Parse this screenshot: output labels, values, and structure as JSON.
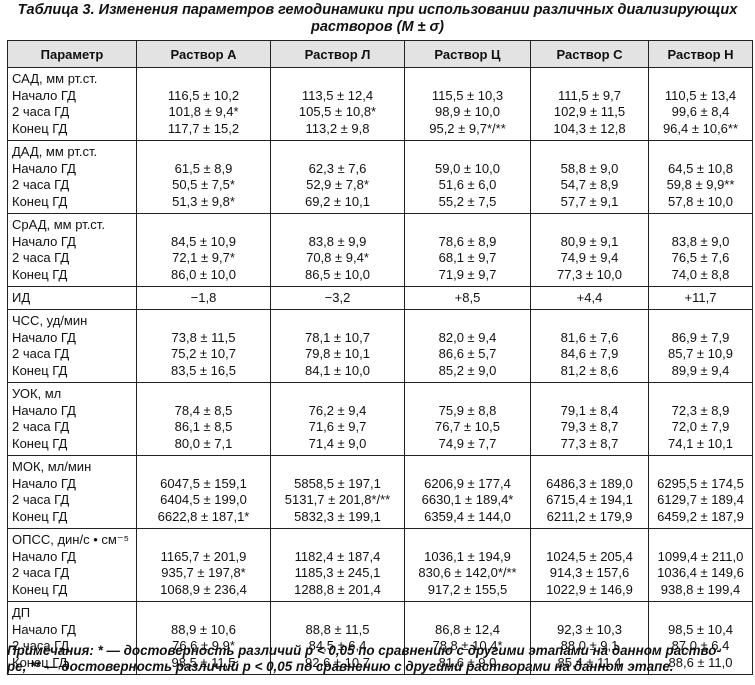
{
  "title_line1": "Таблица 3. Изменения параметров гемодинамики при использовании различных диализирующих",
  "title_line2": "растворов (M ± σ)",
  "headers": [
    "Параметр",
    "Раствор А",
    "Раствор Л",
    "Раствор Ц",
    "Раствор С",
    "Раствор Н"
  ],
  "groups": [
    {
      "params": [
        "САД, мм рт.ст.",
        "Начало ГД",
        "2 часа ГД",
        "Конец ГД"
      ],
      "values": [
        [
          "",
          "116,5 ± 10,2",
          "101,8 ± 9,4*",
          "117,7 ± 15,2"
        ],
        [
          "",
          "113,5 ± 12,4",
          "105,5 ± 10,8*",
          "113,2 ± 9,8"
        ],
        [
          "",
          "115,5 ± 10,3",
          "98,9 ± 10,0",
          "95,2 ± 9,7*/**"
        ],
        [
          "",
          "111,5 ± 9,7",
          "102,9 ± 11,5",
          "104,3 ± 12,8"
        ],
        [
          "",
          "110,5 ± 13,4",
          "99,6 ± 8,4",
          "96,4 ± 10,6**"
        ]
      ]
    },
    {
      "params": [
        "ДАД, мм рт.ст.",
        "Начало ГД",
        "2 часа ГД",
        "Конец ГД"
      ],
      "values": [
        [
          "",
          "61,5 ± 8,9",
          "50,5 ± 7,5*",
          "51,3 ± 9,8*"
        ],
        [
          "",
          "62,3 ± 7,6",
          "52,9 ± 7,8*",
          "69,2 ± 10,1"
        ],
        [
          "",
          "59,0 ± 10,0",
          "51,6 ± 6,0",
          "55,2 ± 7,5"
        ],
        [
          "",
          "58,8 ± 9,0",
          "54,7 ± 8,9",
          "57,7 ± 9,1"
        ],
        [
          "",
          "64,5 ± 10,8",
          "59,8 ± 9,9**",
          "57,8 ± 10,0"
        ]
      ]
    },
    {
      "params": [
        "СрАД, мм рт.ст.",
        "Начало ГД",
        "2 часа ГД",
        "Конец ГД"
      ],
      "values": [
        [
          "",
          "84,5 ± 10,9",
          "72,1 ± 9,7*",
          "86,0 ± 10,0"
        ],
        [
          "",
          "83,8 ± 9,9",
          "70,8 ± 9,4*",
          "86,5 ± 10,0"
        ],
        [
          "",
          "78,6 ± 8,9",
          "68,1 ± 9,7",
          "71,9 ± 9,7"
        ],
        [
          "",
          "80,9 ± 9,1",
          "74,9 ± 9,4",
          "77,3 ± 10,0"
        ],
        [
          "",
          "83,8 ± 9,0",
          "76,5 ± 7,6",
          "74,0 ± 8,8"
        ]
      ]
    },
    {
      "params": [
        "ИД"
      ],
      "values": [
        [
          "−1,8"
        ],
        [
          "−3,2"
        ],
        [
          "+8,5"
        ],
        [
          "+4,4"
        ],
        [
          "+11,7"
        ]
      ]
    },
    {
      "params": [
        "ЧСС, уд/мин",
        "Начало ГД",
        "2 часа ГД",
        "Конец ГД"
      ],
      "values": [
        [
          "",
          "73,8 ± 11,5",
          "75,2 ± 10,7",
          "83,5 ± 16,5"
        ],
        [
          "",
          "78,1 ± 10,7",
          "79,8 ± 10,1",
          "84,1 ± 10,0"
        ],
        [
          "",
          "82,0 ± 9,4",
          "86,6 ± 5,7",
          "85,2 ± 9,0"
        ],
        [
          "",
          "81,6 ± 7,6",
          "84,6 ± 7,9",
          "81,2 ± 8,6"
        ],
        [
          "",
          "86,9 ± 7,9",
          "85,7 ± 10,9",
          "89,9 ± 9,4"
        ]
      ]
    },
    {
      "params": [
        "УОК, мл",
        "Начало ГД",
        "2 часа ГД",
        "Конец ГД"
      ],
      "values": [
        [
          "",
          "78,4 ± 8,5",
          "86,1 ± 8,5",
          "80,0 ± 7,1"
        ],
        [
          "",
          "76,2 ± 9,4",
          "71,6 ± 9,7",
          "71,4 ± 9,0"
        ],
        [
          "",
          "75,9 ± 8,8",
          "76,7 ± 10,5",
          "74,9 ± 7,7"
        ],
        [
          "",
          "79,1 ± 8,4",
          "79,3 ± 8,7",
          "77,3 ± 8,7"
        ],
        [
          "",
          "72,3 ± 8,9",
          "72,0 ± 7,9",
          "74,1 ± 10,1"
        ]
      ]
    },
    {
      "params": [
        "МОК, мл/мин",
        "Начало ГД",
        "2 часа ГД",
        "Конец ГД"
      ],
      "values": [
        [
          "",
          "6047,5 ± 159,1",
          "6404,5 ± 199,0",
          "6622,8 ± 187,1*"
        ],
        [
          "",
          "5858,5 ± 197,1",
          "5131,7 ± 201,8*/**",
          "5832,3 ± 199,1"
        ],
        [
          "",
          "6206,9 ± 177,4",
          "6630,1 ± 189,4*",
          "6359,4 ± 144,0"
        ],
        [
          "",
          "6486,3 ± 189,0",
          "6715,4 ± 194,1",
          "6211,2 ± 179,9"
        ],
        [
          "",
          "6295,5 ± 174,5",
          "6129,7 ± 189,4",
          "6459,2 ± 187,9"
        ]
      ]
    },
    {
      "params": [
        "ОПСС, дин/с • см⁻⁵",
        "Начало ГД",
        "2 часа ГД",
        "Конец ГД"
      ],
      "values": [
        [
          "",
          "1165,7 ± 201,9",
          "935,7 ± 197,8*",
          "1068,9 ± 236,4"
        ],
        [
          "",
          "1182,4 ± 187,4",
          "1185,3 ± 245,1",
          "1288,8 ± 201,4"
        ],
        [
          "",
          "1036,1 ± 194,9",
          "830,6 ± 142,0*/**",
          "917,2 ± 155,5"
        ],
        [
          "",
          "1024,5 ± 205,4",
          "914,3 ± 157,6",
          "1022,9 ± 146,9"
        ],
        [
          "",
          "1099,4 ± 211,0",
          "1036,4 ± 149,6",
          "938,8 ± 199,4"
        ]
      ]
    },
    {
      "params": [
        "ДП",
        "Начало ГД",
        "2 часа ГД",
        "Конец ГД"
      ],
      "values": [
        [
          "",
          "88,9 ± 10,6",
          "76,6 ± 9,9*",
          "98,5 ± 11,5"
        ],
        [
          "",
          "88,8 ± 11,5",
          "84,5 ± 6,4",
          "92,6 ± 10,7"
        ],
        [
          "",
          "86,8 ± 12,4",
          "78,8 ± 10,4*",
          "81,6 ± 9,0"
        ],
        [
          "",
          "92,3 ± 10,3",
          "88,0 ± 9,1",
          "85,4 ± 11,4"
        ],
        [
          "",
          "98,5 ± 10,4",
          "87,0 ± 6,4",
          "88,6 ± 11,0"
        ]
      ]
    }
  ],
  "notes_line1": "Примечания: * — достоверность различий p < 0,05 по сравнению с другими этапами на данном раство-",
  "notes_line2": "ре, ** — достоверность различий p < 0,05 по сравнению с другими растворами на данном этапе."
}
